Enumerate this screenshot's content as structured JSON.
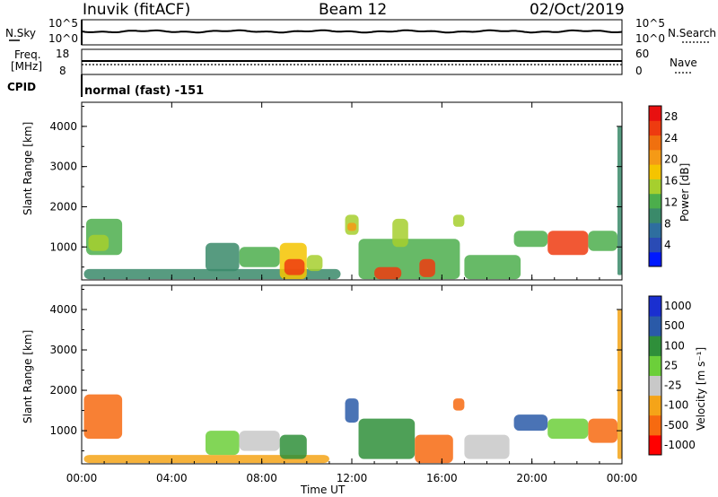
{
  "header": {
    "station": "Inuvik (fitACF)",
    "beam": "Beam 12",
    "date": "02/Oct/2019"
  },
  "noise_panel": {
    "left_label": "N.Sky",
    "right_label": "N.Search",
    "left_ticks": [
      "10^5",
      "10^0"
    ],
    "right_ticks": [
      "10^5",
      "10^0"
    ]
  },
  "freq_panel": {
    "left_label_line1": "Freq.",
    "left_label_line2": "[MHz]",
    "right_label": "Nave",
    "left_ticks": [
      "18",
      "8"
    ],
    "right_ticks": [
      "60",
      "0"
    ]
  },
  "cpid": {
    "label": "CPID",
    "value": "normal (fast) -151"
  },
  "colors": {
    "scale_power": [
      "#0019ff",
      "#2a4bb5",
      "#2e6e9f",
      "#3a8a6a",
      "#4cae4c",
      "#a6cf2e",
      "#f5c400",
      "#f59a16",
      "#f0700f",
      "#ee3b10",
      "#e81010"
    ],
    "scale_velocity": [
      "#ff0000",
      "#f76a10",
      "#f5a418",
      "#c8c8c8",
      "#6ccf3a",
      "#2f8f3a",
      "#2a5aa8",
      "#1a2fd0"
    ]
  },
  "chart_data": [
    {
      "type": "heatmap",
      "title": "",
      "xlabel": "Time UT",
      "ylabel": "Slant Range [km]",
      "xlim": [
        "00:00",
        "24:00"
      ],
      "ylim": [
        180,
        4600
      ],
      "x_ticks": [
        "00:00",
        "04:00",
        "08:00",
        "12:00",
        "16:00",
        "20:00",
        "00:00"
      ],
      "y_ticks": [
        1000,
        2000,
        3000,
        4000
      ],
      "colorbar": {
        "label": "Power [dB]",
        "ticks": [
          4,
          8,
          12,
          16,
          20,
          24,
          28
        ],
        "range": [
          0,
          30
        ]
      },
      "patches": [
        {
          "t0": 0.1,
          "t1": 11.5,
          "r0": 200,
          "r1": 450,
          "v": 10
        },
        {
          "t0": 0.2,
          "t1": 1.8,
          "r0": 800,
          "r1": 1700,
          "v": 11
        },
        {
          "t0": 0.3,
          "t1": 1.2,
          "r0": 900,
          "r1": 1300,
          "v": 16
        },
        {
          "t0": 5.5,
          "t1": 7.0,
          "r0": 400,
          "r1": 1100,
          "v": 8
        },
        {
          "t0": 7.0,
          "t1": 8.8,
          "r0": 500,
          "r1": 1000,
          "v": 12
        },
        {
          "t0": 8.8,
          "t1": 10.0,
          "r0": 200,
          "r1": 1100,
          "v": 18
        },
        {
          "t0": 9.0,
          "t1": 9.9,
          "r0": 300,
          "r1": 700,
          "v": 28
        },
        {
          "t0": 10.0,
          "t1": 10.7,
          "r0": 400,
          "r1": 800,
          "v": 14
        },
        {
          "t0": 11.7,
          "t1": 12.3,
          "r0": 1300,
          "r1": 1800,
          "v": 14
        },
        {
          "t0": 11.8,
          "t1": 12.2,
          "r0": 1400,
          "r1": 1600,
          "v": 22
        },
        {
          "t0": 12.3,
          "t1": 16.8,
          "r0": 200,
          "r1": 1200,
          "v": 13
        },
        {
          "t0": 13.0,
          "t1": 14.2,
          "r0": 200,
          "r1": 500,
          "v": 28
        },
        {
          "t0": 15.0,
          "t1": 15.7,
          "r0": 250,
          "r1": 700,
          "v": 26
        },
        {
          "t0": 13.8,
          "t1": 14.5,
          "r0": 1000,
          "r1": 1700,
          "v": 15
        },
        {
          "t0": 16.5,
          "t1": 17.0,
          "r0": 1500,
          "r1": 1800,
          "v": 14
        },
        {
          "t0": 17.0,
          "t1": 19.5,
          "r0": 200,
          "r1": 800,
          "v": 11
        },
        {
          "t0": 19.2,
          "t1": 20.7,
          "r0": 1000,
          "r1": 1400,
          "v": 12
        },
        {
          "t0": 20.7,
          "t1": 22.5,
          "r0": 800,
          "r1": 1400,
          "v": 26
        },
        {
          "t0": 22.5,
          "t1": 23.8,
          "r0": 900,
          "r1": 1400,
          "v": 12
        },
        {
          "t0": 23.8,
          "t1": 24.0,
          "r0": 300,
          "r1": 4000,
          "v": 9
        }
      ]
    },
    {
      "type": "heatmap",
      "title": "",
      "xlabel": "Time UT",
      "ylabel": "Slant Range [km]",
      "xlim": [
        "00:00",
        "24:00"
      ],
      "ylim": [
        180,
        4600
      ],
      "x_ticks": [
        "00:00",
        "04:00",
        "08:00",
        "12:00",
        "16:00",
        "20:00",
        "00:00"
      ],
      "y_ticks": [
        1000,
        2000,
        3000,
        4000
      ],
      "colorbar": {
        "label": "Velocity [m s⁻¹]",
        "ticks": [
          "1000",
          "500",
          "100",
          "25",
          "-25",
          "-100",
          "-500",
          "-1000"
        ]
      },
      "patches": [
        {
          "t0": 0.1,
          "t1": 1.8,
          "r0": 800,
          "r1": 1900,
          "v": -200
        },
        {
          "t0": 0.1,
          "t1": 11.0,
          "r0": 200,
          "r1": 400,
          "v": -80
        },
        {
          "t0": 5.5,
          "t1": 7.0,
          "r0": 400,
          "r1": 1000,
          "v": 60
        },
        {
          "t0": 7.0,
          "t1": 8.8,
          "r0": 500,
          "r1": 1000,
          "v": 0
        },
        {
          "t0": 8.8,
          "t1": 10.0,
          "r0": 300,
          "r1": 900,
          "v": 300
        },
        {
          "t0": 11.7,
          "t1": 12.3,
          "r0": 1200,
          "r1": 1800,
          "v": 600
        },
        {
          "t0": 12.3,
          "t1": 14.8,
          "r0": 300,
          "r1": 1300,
          "v": 250
        },
        {
          "t0": 14.8,
          "t1": 16.5,
          "r0": 200,
          "r1": 900,
          "v": -200
        },
        {
          "t0": 16.5,
          "t1": 17.0,
          "r0": 1500,
          "r1": 1800,
          "v": -150
        },
        {
          "t0": 17.0,
          "t1": 19.0,
          "r0": 300,
          "r1": 900,
          "v": 0
        },
        {
          "t0": 19.2,
          "t1": 20.7,
          "r0": 1000,
          "r1": 1400,
          "v": 800
        },
        {
          "t0": 20.7,
          "t1": 22.5,
          "r0": 800,
          "r1": 1300,
          "v": 50
        },
        {
          "t0": 22.5,
          "t1": 23.8,
          "r0": 700,
          "r1": 1300,
          "v": -180
        },
        {
          "t0": 23.8,
          "t1": 24.0,
          "r0": 300,
          "r1": 4000,
          "v": -60
        }
      ]
    }
  ]
}
